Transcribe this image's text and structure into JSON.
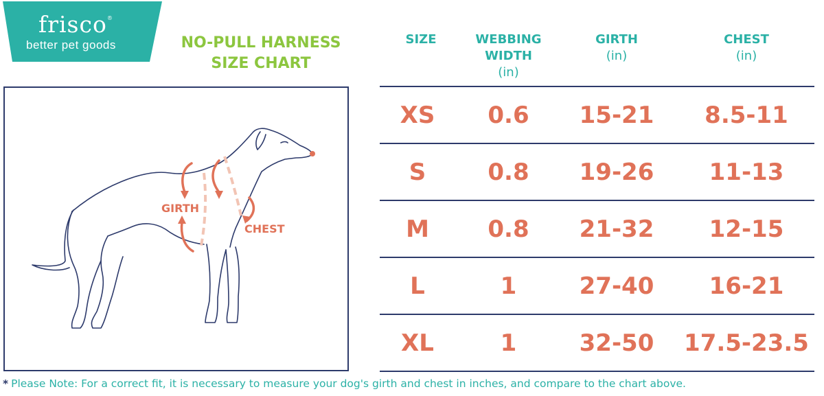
{
  "logo": {
    "name": "frisco",
    "tagline": "better pet goods"
  },
  "chart_title": {
    "line1": "NO-PULL HARNESS",
    "line2": "SIZE CHART"
  },
  "diagram": {
    "girth_label": "GIRTH",
    "chest_label": "CHEST"
  },
  "table": {
    "headers": [
      {
        "label": "SIZE",
        "unit": ""
      },
      {
        "label": "WEBBING WIDTH",
        "unit": "(in)"
      },
      {
        "label": "GIRTH",
        "unit": "(in)"
      },
      {
        "label": "CHEST",
        "unit": "(in)"
      }
    ],
    "rows": [
      [
        "XS",
        "0.6",
        "15-21",
        "8.5-11"
      ],
      [
        "S",
        "0.8",
        "19-26",
        "11-13"
      ],
      [
        "M",
        "0.8",
        "21-32",
        "12-15"
      ],
      [
        "L",
        "1",
        "27-40",
        "16-21"
      ],
      [
        "XL",
        "1",
        "32-50",
        "17.5-23.5"
      ]
    ]
  },
  "note": {
    "star": "*",
    "text": "Please Note: For a correct fit, it is necessary to measure your dog's girth and chest in inches, and compare to the chart above."
  },
  "colors": {
    "teal": "#2bb1a6",
    "green": "#8cc63f",
    "coral": "#e07258",
    "navy": "#2d3a6b"
  }
}
